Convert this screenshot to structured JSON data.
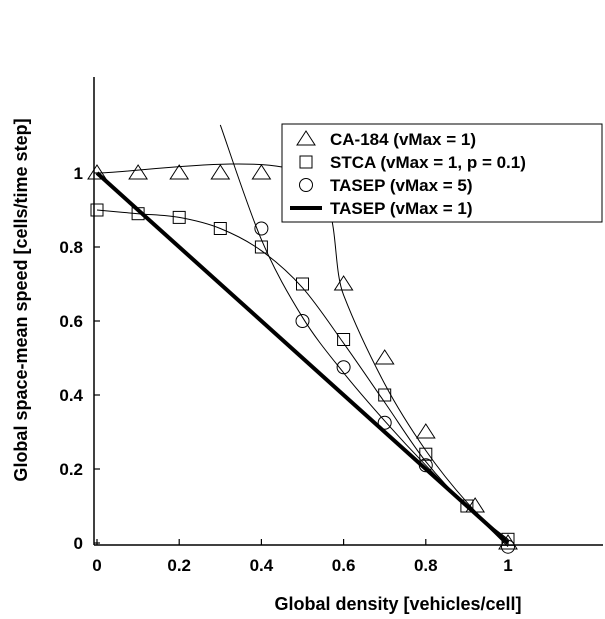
{
  "chart_data": {
    "type": "line",
    "title": "",
    "xlabel": "Global density [vehicles/cell]",
    "ylabel": "Global space-mean speed [cells/time step]",
    "xlim": [
      0,
      1.25
    ],
    "ylim": [
      0,
      1.17
    ],
    "xticks": [
      {
        "value": 0,
        "label": "0"
      },
      {
        "value": 0.2,
        "label": "0.2"
      },
      {
        "value": 0.4,
        "label": "0.4"
      },
      {
        "value": 0.6,
        "label": "0.6"
      },
      {
        "value": 0.8,
        "label": "0.8"
      },
      {
        "value": 1,
        "label": "1"
      }
    ],
    "yticks": [
      {
        "value": 0,
        "label": "0"
      },
      {
        "value": 0.2,
        "label": "0.2"
      },
      {
        "value": 0.4,
        "label": "0.4"
      },
      {
        "value": 0.6,
        "label": "0.6"
      },
      {
        "value": 0.8,
        "label": "0.8"
      },
      {
        "value": 1,
        "label": "1"
      }
    ],
    "grid": false,
    "legend_position": "top-right",
    "series": [
      {
        "name": "CA-184 (vMax = 1)",
        "marker": "triangle",
        "points": [
          [
            0,
            1
          ],
          [
            0.1,
            1
          ],
          [
            0.2,
            1
          ],
          [
            0.3,
            1
          ],
          [
            0.4,
            1
          ],
          [
            0.5,
            1
          ],
          [
            0.6,
            0.7
          ],
          [
            0.7,
            0.5
          ],
          [
            0.8,
            0.3
          ],
          [
            0.92,
            0.1
          ],
          [
            1,
            0
          ]
        ],
        "curve": [
          [
            0,
            1
          ],
          [
            0.5,
            1
          ],
          [
            0.6,
            0.67
          ],
          [
            0.7,
            0.43
          ],
          [
            0.8,
            0.25
          ],
          [
            0.9,
            0.11
          ],
          [
            1,
            0
          ]
        ]
      },
      {
        "name": "STCA (vMax = 1, p = 0.1)",
        "marker": "square",
        "points": [
          [
            0,
            0.9
          ],
          [
            0.1,
            0.89
          ],
          [
            0.2,
            0.88
          ],
          [
            0.3,
            0.85
          ],
          [
            0.4,
            0.8
          ],
          [
            0.5,
            0.7
          ],
          [
            0.6,
            0.55
          ],
          [
            0.7,
            0.4
          ],
          [
            0.8,
            0.24
          ],
          [
            0.9,
            0.1
          ],
          [
            1,
            0.01
          ]
        ],
        "curve": [
          [
            0,
            0.9
          ],
          [
            0.1,
            0.89
          ],
          [
            0.2,
            0.88
          ],
          [
            0.3,
            0.85
          ],
          [
            0.4,
            0.79
          ],
          [
            0.5,
            0.69
          ],
          [
            0.6,
            0.54
          ],
          [
            0.7,
            0.38
          ],
          [
            0.8,
            0.22
          ],
          [
            0.9,
            0.1
          ],
          [
            1,
            0.01
          ]
        ]
      },
      {
        "name": "TASEP (vMax = 5)",
        "marker": "circle",
        "points": [
          [
            0.4,
            0.85
          ],
          [
            0.5,
            0.6
          ],
          [
            0.6,
            0.475
          ],
          [
            0.7,
            0.325
          ],
          [
            0.8,
            0.21
          ],
          [
            1,
            -0.01
          ]
        ],
        "curve": [
          [
            0.3,
            1.13
          ],
          [
            0.4,
            0.82
          ],
          [
            0.5,
            0.61
          ],
          [
            0.6,
            0.46
          ],
          [
            0.7,
            0.33
          ],
          [
            0.8,
            0.21
          ],
          [
            0.9,
            0.1
          ],
          [
            1,
            -0.01
          ]
        ]
      },
      {
        "name": "TASEP (vMax = 1)",
        "marker": "thick-line",
        "points": [],
        "curve": [
          [
            0,
            1
          ],
          [
            1,
            0
          ]
        ]
      }
    ]
  }
}
